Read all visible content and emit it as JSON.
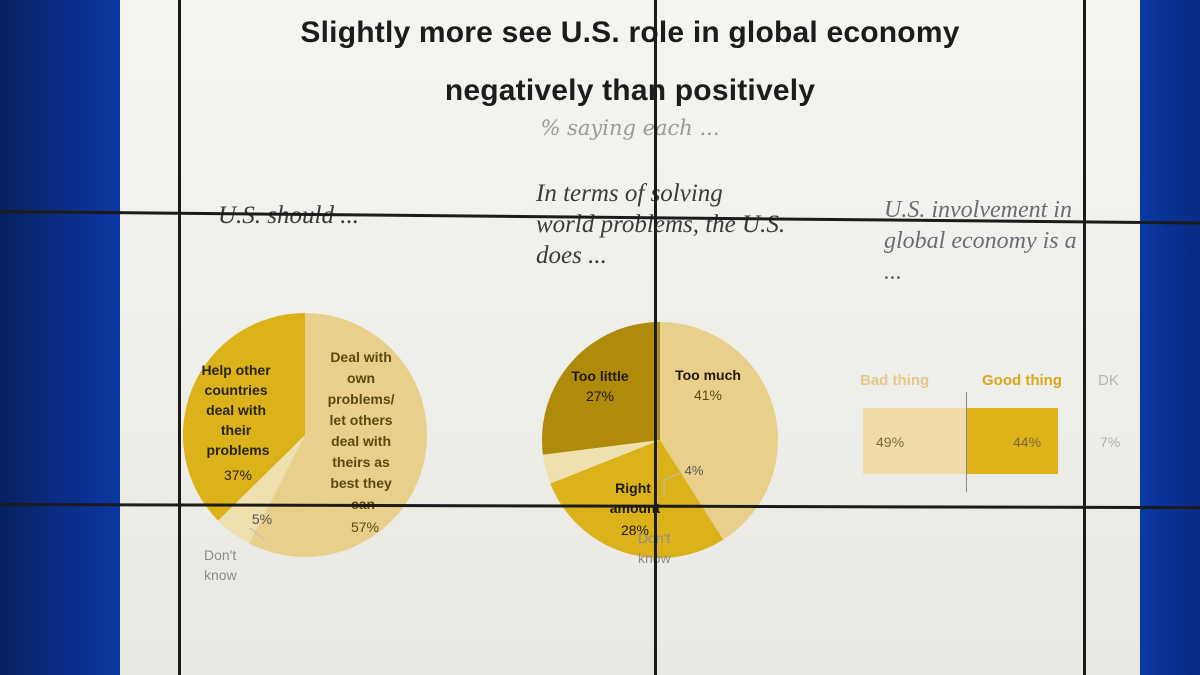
{
  "slide": {
    "title_line1": "Slightly more see U.S. role in global economy",
    "title_line2": "negatively than positively",
    "subtitle": "% saying each ..."
  },
  "colors": {
    "dark_gold": "#b08a0a",
    "medium_gold": "#dbb21a",
    "light_gold": "#e8d08c",
    "pale_gold": "#efe0b0"
  },
  "chart_data": [
    {
      "type": "pie",
      "title": "U.S. should ...",
      "slices": [
        {
          "label": "Deal with own problems/ let others deal with theirs as best they can",
          "value": 57,
          "display": "57%"
        },
        {
          "label": "Don't know",
          "value": 5,
          "display": "5%"
        },
        {
          "label": "Help other countries deal with their problems",
          "value": 37,
          "display": "37%"
        }
      ]
    },
    {
      "type": "pie",
      "title": "In terms of solving world problems, the U.S. does ...",
      "slices": [
        {
          "label": "Too much",
          "value": 41,
          "display": "41%"
        },
        {
          "label": "Right amount",
          "value": 28,
          "display": "28%"
        },
        {
          "label": "Don't know",
          "value": 4,
          "display": "4%"
        },
        {
          "label": "Too little",
          "value": 27,
          "display": "27%"
        }
      ]
    },
    {
      "type": "bar",
      "title": "U.S. involvement in global economy is a ...",
      "orientation": "horizontal-stacked",
      "categories": [
        "Bad thing",
        "Good thing",
        "DK"
      ],
      "values": [
        49,
        44,
        7
      ],
      "display": [
        "49%",
        "44%",
        "7%"
      ]
    }
  ]
}
